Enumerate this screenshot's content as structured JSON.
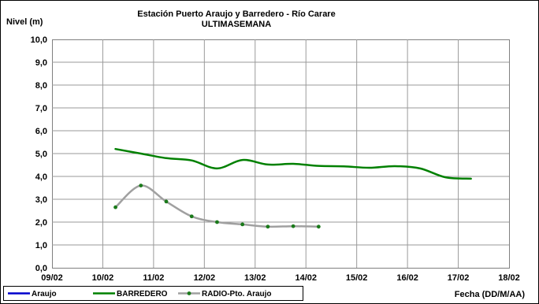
{
  "chart_data": {
    "type": "line",
    "title": "Estación Puerto Araujo y Barredero - Río Carare",
    "subtitle": "ULTIMASEMANA",
    "ylabel": "Nivel (m)",
    "xlabel": "Fecha (DD/M/AA)",
    "ylim": [
      0,
      10
    ],
    "yticks": [
      "0,0",
      "1,0",
      "2,0",
      "3,0",
      "4,0",
      "5,0",
      "6,0",
      "7,0",
      "8,0",
      "9,0",
      "10,0"
    ],
    "xlim": [
      0,
      9
    ],
    "xticks": [
      "09/02",
      "10/02",
      "11/02",
      "12/02",
      "13/02",
      "14/02",
      "15/02",
      "16/02",
      "17/02",
      "18/02"
    ],
    "grid": true,
    "legend_position": "bottom",
    "series": [
      {
        "name": "Araujo",
        "color": "#0000cc",
        "markers": false,
        "points": []
      },
      {
        "name": "BARREDERO",
        "color": "#008000",
        "markers": false,
        "points": [
          [
            1.25,
            5.2
          ],
          [
            1.75,
            5.0
          ],
          [
            2.25,
            4.8
          ],
          [
            2.75,
            4.7
          ],
          [
            3.25,
            4.35
          ],
          [
            3.75,
            4.72
          ],
          [
            4.25,
            4.52
          ],
          [
            4.75,
            4.55
          ],
          [
            5.25,
            4.46
          ],
          [
            5.75,
            4.44
          ],
          [
            6.25,
            4.38
          ],
          [
            6.75,
            4.45
          ],
          [
            7.25,
            4.35
          ],
          [
            7.75,
            3.96
          ],
          [
            8.25,
            3.9
          ]
        ]
      },
      {
        "name": "RADIO-Pto. Araujo",
        "color": "#a0a0a0",
        "marker_color": "#1a7a1a",
        "markers": true,
        "points": [
          [
            1.25,
            2.65
          ],
          [
            1.75,
            3.6
          ],
          [
            2.25,
            2.9
          ],
          [
            2.75,
            2.25
          ],
          [
            3.25,
            2.0
          ],
          [
            3.75,
            1.9
          ],
          [
            4.25,
            1.8
          ],
          [
            4.75,
            1.82
          ],
          [
            5.25,
            1.8
          ]
        ]
      }
    ]
  }
}
